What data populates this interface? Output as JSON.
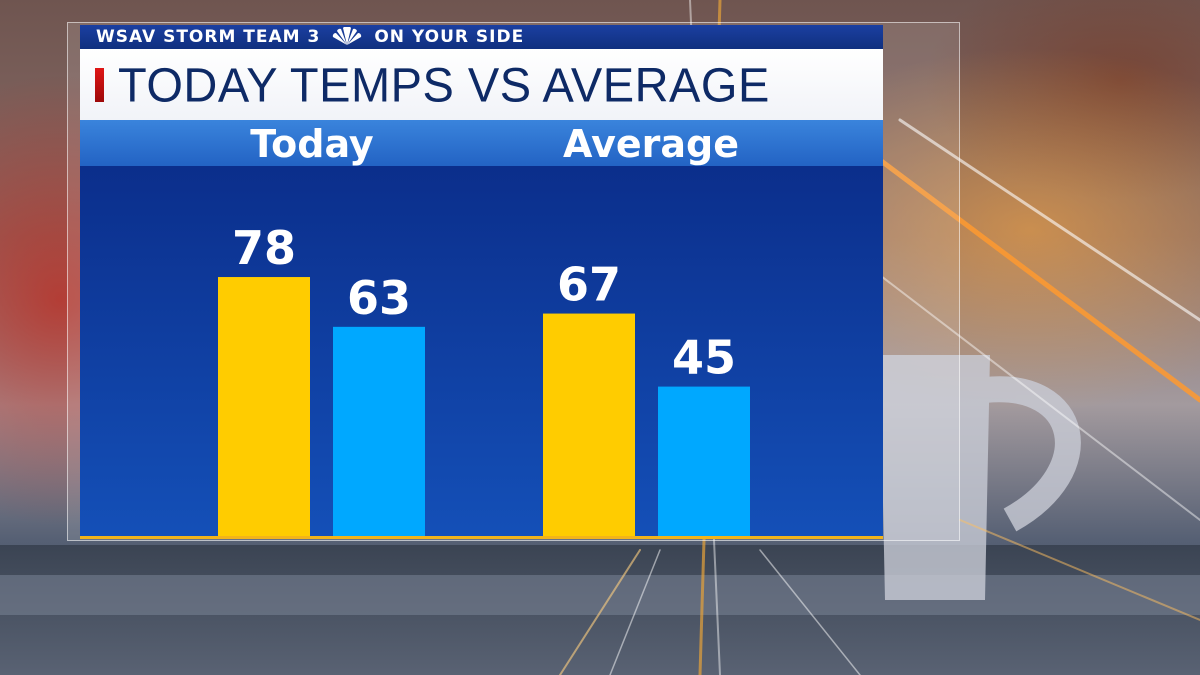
{
  "header": {
    "station_text": "WSAV STORM TEAM 3",
    "network_icon": "nbc-peacock-icon",
    "tagline": "ON YOUR SIDE"
  },
  "title": "TODAY TEMPS VS AVERAGE",
  "colors": {
    "high_bar": "#ffcc00",
    "low_bar": "#00a8ff",
    "chart_bg_top": "#0a2a86",
    "chart_bg_bottom": "#1450b8",
    "group_header": "#2f77d2",
    "accent": "#e01616",
    "baseline": "#f2b41a"
  },
  "chart_data": {
    "type": "bar",
    "categories": [
      "Today",
      "Average"
    ],
    "series": [
      {
        "values": [
          78,
          67
        ],
        "color": "#ffcc00"
      },
      {
        "values": [
          63,
          45
        ],
        "color": "#00a8ff"
      }
    ],
    "title": "TODAY TEMPS VS AVERAGE",
    "xlabel": "",
    "ylabel": "",
    "grid": false,
    "legend": "none"
  }
}
